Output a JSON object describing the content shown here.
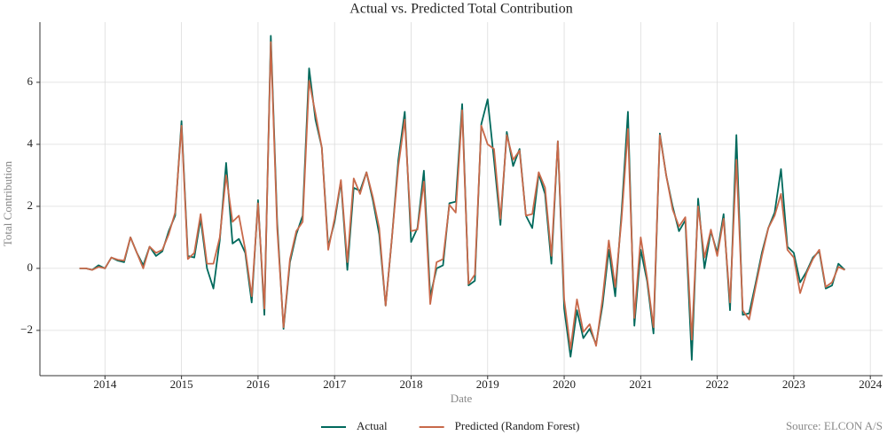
{
  "chart_data": {
    "type": "line",
    "title": "Actual vs. Predicted Total Contribution",
    "x_label": "Date",
    "y_label": "Total Contribution",
    "source": "Source: ELCON A/S",
    "x": [
      2013.667,
      2013.75,
      2013.833,
      2013.917,
      2014.0,
      2014.083,
      2014.167,
      2014.25,
      2014.333,
      2014.417,
      2014.5,
      2014.583,
      2014.667,
      2014.75,
      2014.833,
      2014.917,
      2015.0,
      2015.083,
      2015.167,
      2015.25,
      2015.333,
      2015.417,
      2015.5,
      2015.583,
      2015.667,
      2015.75,
      2015.833,
      2015.917,
      2016.0,
      2016.083,
      2016.167,
      2016.25,
      2016.333,
      2016.417,
      2016.5,
      2016.583,
      2016.667,
      2016.75,
      2016.833,
      2016.917,
      2017.0,
      2017.083,
      2017.167,
      2017.25,
      2017.333,
      2017.417,
      2017.5,
      2017.583,
      2017.667,
      2017.75,
      2017.833,
      2017.917,
      2018.0,
      2018.083,
      2018.167,
      2018.25,
      2018.333,
      2018.417,
      2018.5,
      2018.583,
      2018.667,
      2018.75,
      2018.833,
      2018.917,
      2019.0,
      2019.083,
      2019.167,
      2019.25,
      2019.333,
      2019.417,
      2019.5,
      2019.583,
      2019.667,
      2019.75,
      2019.833,
      2019.917,
      2020.0,
      2020.083,
      2020.167,
      2020.25,
      2020.333,
      2020.417,
      2020.5,
      2020.583,
      2020.667,
      2020.75,
      2020.833,
      2020.917,
      2021.0,
      2021.083,
      2021.167,
      2021.25,
      2021.333,
      2021.417,
      2021.5,
      2021.583,
      2021.667,
      2021.75,
      2021.833,
      2021.917,
      2022.0,
      2022.083,
      2022.167,
      2022.25,
      2022.333,
      2022.417,
      2022.5,
      2022.583,
      2022.667,
      2022.75,
      2022.833,
      2022.917,
      2023.0,
      2023.083,
      2023.167,
      2023.25,
      2023.333,
      2023.417,
      2023.5,
      2023.583,
      2023.667
    ],
    "series": [
      {
        "name": "Actual",
        "color": "#00695c",
        "values": [
          0,
          0,
          -0.05,
          0.1,
          0,
          0.35,
          0.25,
          0.2,
          1.0,
          0.5,
          0.1,
          0.7,
          0.4,
          0.55,
          1.2,
          1.7,
          4.75,
          0.4,
          0.35,
          1.6,
          0,
          -0.65,
          0.9,
          3.4,
          0.8,
          0.95,
          0.5,
          -1.1,
          2.2,
          -1.5,
          7.5,
          1.5,
          -1.95,
          0.2,
          1.1,
          1.7,
          6.45,
          4.8,
          3.9,
          0.7,
          1.5,
          2.8,
          -0.05,
          2.6,
          2.5,
          3.1,
          2.2,
          1.1,
          -1.2,
          1.0,
          3.5,
          5.05,
          0.85,
          1.3,
          3.15,
          -0.9,
          0,
          0.1,
          2.1,
          2.15,
          5.3,
          -0.55,
          -0.4,
          4.65,
          5.45,
          3.5,
          1.4,
          4.4,
          3.3,
          3.85,
          1.7,
          1.3,
          3.05,
          2.4,
          0.15,
          4.1,
          -1.3,
          -2.85,
          -1.35,
          -2.25,
          -1.95,
          -2.45,
          -1.2,
          0.6,
          -0.9,
          1.8,
          5.05,
          -1.85,
          0.6,
          -0.4,
          -2.1,
          4.35,
          3.0,
          2.0,
          1.2,
          1.55,
          -2.95,
          2.25,
          0,
          1.2,
          0.5,
          1.75,
          -1.35,
          4.3,
          -1.5,
          -1.45,
          -0.5,
          0.5,
          1.3,
          1.8,
          3.2,
          0.7,
          0.5,
          -0.45,
          -0.1,
          0.35,
          0.55,
          -0.65,
          -0.55,
          0.15,
          -0.05
        ]
      },
      {
        "name": "Predicted (Random Forest)",
        "color": "#c8694a",
        "values": [
          0,
          0,
          -0.05,
          0.05,
          0,
          0.35,
          0.28,
          0.25,
          1.0,
          0.5,
          0,
          0.7,
          0.5,
          0.6,
          1.1,
          1.8,
          4.6,
          0.3,
          0.5,
          1.75,
          0.15,
          0.15,
          1.0,
          3.0,
          1.5,
          1.7,
          0.6,
          -0.9,
          2.1,
          -1.3,
          7.3,
          1.3,
          -1.9,
          0.3,
          1.2,
          1.5,
          6.05,
          5.0,
          3.9,
          0.6,
          1.6,
          2.85,
          0.2,
          2.9,
          2.4,
          3.1,
          2.3,
          1.3,
          -1.2,
          1.0,
          3.3,
          4.8,
          1.2,
          1.25,
          2.8,
          -1.15,
          0.2,
          0.3,
          2.05,
          1.8,
          5.1,
          -0.5,
          -0.2,
          4.6,
          4.0,
          3.85,
          1.6,
          4.3,
          3.5,
          3.8,
          1.7,
          1.75,
          3.1,
          2.6,
          0.4,
          4.1,
          -1.0,
          -2.6,
          -1.0,
          -2.05,
          -1.8,
          -2.5,
          -1.0,
          0.9,
          -0.6,
          1.6,
          4.5,
          -1.6,
          1.0,
          -0.3,
          -1.9,
          4.3,
          3.0,
          1.9,
          1.35,
          1.65,
          -2.3,
          2.0,
          0.35,
          1.25,
          0.4,
          1.6,
          -1.1,
          3.5,
          -1.35,
          -1.65,
          -0.6,
          0.4,
          1.3,
          1.7,
          2.4,
          0.6,
          0.35,
          -0.8,
          -0.15,
          0.3,
          0.6,
          -0.6,
          -0.45,
          0.05,
          -0.05
        ]
      }
    ],
    "xlim": [
      2013.15,
      2024.16
    ],
    "xticks": [
      2014,
      2015,
      2016,
      2017,
      2018,
      2019,
      2020,
      2021,
      2022,
      2023,
      2024
    ],
    "ylim": [
      -3.46,
      7.94
    ],
    "yticks": [
      {
        "value": -2,
        "label": "−2"
      },
      0,
      2,
      4,
      6
    ],
    "grid": true,
    "legend": "lower center"
  }
}
